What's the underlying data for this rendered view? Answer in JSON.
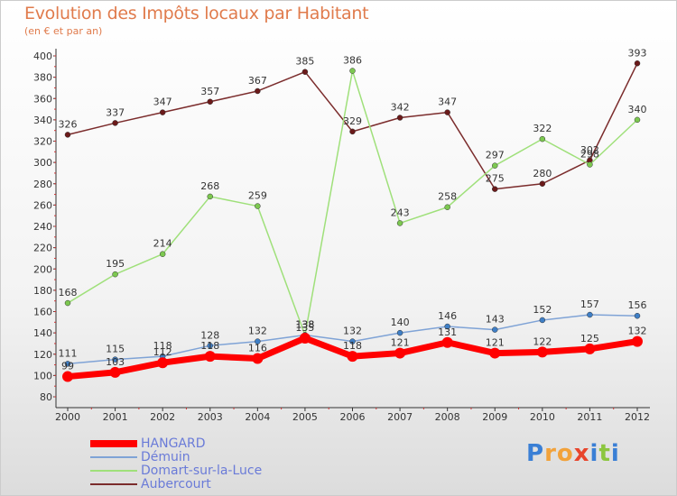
{
  "title": "Evolution des Impôts locaux par Habitant",
  "subtitle": "(en € et par an)",
  "logo": {
    "text": "Proxiti",
    "letters": [
      "P",
      "r",
      "o",
      "x",
      "i",
      "t",
      "i"
    ],
    "colors": [
      "#3a7fd5",
      "#f2a23b",
      "#f2a23b",
      "#e8452c",
      "#3a7fd5",
      "#8cc63f",
      "#3a7fd5"
    ]
  },
  "chart_data": {
    "type": "line",
    "x": [
      "2000",
      "2001",
      "2002",
      "2003",
      "2004",
      "2005",
      "2006",
      "2007",
      "2008",
      "2009",
      "2010",
      "2011",
      "2012"
    ],
    "ylim": [
      80,
      400
    ],
    "yticks": [
      80,
      100,
      120,
      140,
      160,
      180,
      200,
      220,
      240,
      260,
      280,
      300,
      320,
      340,
      360,
      380,
      400
    ],
    "grid": false,
    "legend_position": "bottom-left",
    "series": [
      {
        "name": "Aubercourt",
        "color": "#7b2c2c",
        "marker": "#6b1a1a",
        "width": 1.5,
        "labels": true,
        "values": [
          326,
          337,
          347,
          357,
          367,
          385,
          329,
          342,
          347,
          275,
          280,
          302,
          393
        ]
      },
      {
        "name": "Domart-sur-la-Luce",
        "color": "#9fe07a",
        "marker": "#7cc850",
        "width": 1.5,
        "labels": true,
        "values": [
          168,
          195,
          214,
          268,
          259,
          138,
          386,
          243,
          258,
          297,
          322,
          298,
          340
        ]
      },
      {
        "name": "Démuin",
        "color": "#7fa3d6",
        "marker": "#3f7fc6",
        "width": 1.5,
        "labels": true,
        "values": [
          111,
          115,
          118,
          128,
          132,
          138,
          132,
          140,
          146,
          143,
          152,
          157,
          156
        ]
      },
      {
        "name": "HANGARD",
        "color": "#ff0000",
        "marker": "#ff0000",
        "width": 7,
        "labels": true,
        "values": [
          99,
          103,
          112,
          118,
          116,
          135,
          118,
          121,
          131,
          121,
          122,
          125,
          132
        ]
      }
    ],
    "legend_order": [
      "HANGARD",
      "Démuin",
      "Domart-sur-la-Luce",
      "Aubercourt"
    ]
  }
}
